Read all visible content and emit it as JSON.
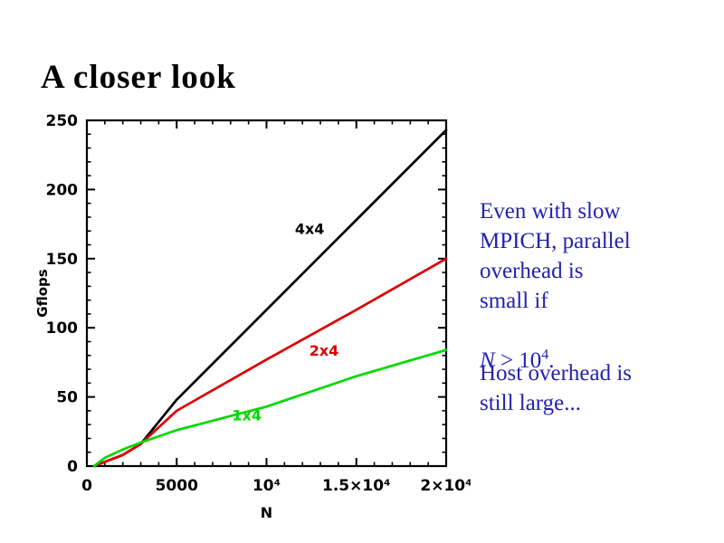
{
  "slide": {
    "title": "A closer look",
    "text_color": "#2222b2"
  },
  "notes": {
    "note1_lines": "Even with slow\nMPICH, parallel\noverhead is\nsmall if",
    "note1_math": {
      "var": "N",
      "rel": " > 10",
      "sup": "4",
      "end": "."
    },
    "note2_lines": "Host overhead is\nstill large..."
  },
  "chart_data": {
    "type": "line",
    "title": "",
    "xlabel": "N",
    "ylabel": "Gflops",
    "xlim": [
      0,
      20000
    ],
    "ylim": [
      0,
      250
    ],
    "grid": false,
    "legend": "inline-labels",
    "x_major_ticks": [
      {
        "v": 0,
        "label": "0"
      },
      {
        "v": 5000,
        "label": "5000"
      },
      {
        "v": 10000,
        "label": "10⁴"
      },
      {
        "v": 15000,
        "label": "1.5×10⁴"
      },
      {
        "v": 20000,
        "label": "2×10⁴"
      }
    ],
    "x_minor_step": 1000,
    "y_major_ticks": [
      {
        "v": 0,
        "label": "0"
      },
      {
        "v": 50,
        "label": "50"
      },
      {
        "v": 100,
        "label": "100"
      },
      {
        "v": 150,
        "label": "150"
      },
      {
        "v": 200,
        "label": "200"
      },
      {
        "v": 250,
        "label": "250"
      }
    ],
    "y_minor_step": 10,
    "x": [
      400,
      1000,
      2000,
      3000,
      5000,
      10000,
      15000,
      20000
    ],
    "series": [
      {
        "name": "4x4",
        "color": "#000000",
        "values": [
          0,
          3,
          8,
          16,
          48,
          113,
          178,
          243
        ],
        "label_pos": {
          "x": 12400,
          "y": 168
        }
      },
      {
        "name": "2x4",
        "color": "#dd0000",
        "values": [
          0,
          3,
          8,
          16,
          40,
          77,
          113,
          150
        ],
        "label_pos": {
          "x": 13200,
          "y": 80
        }
      },
      {
        "name": "1x4",
        "color": "#00d800",
        "values": [
          0,
          6,
          12,
          17,
          26,
          43,
          65,
          84
        ],
        "label_pos": {
          "x": 8900,
          "y": 33
        }
      }
    ]
  }
}
